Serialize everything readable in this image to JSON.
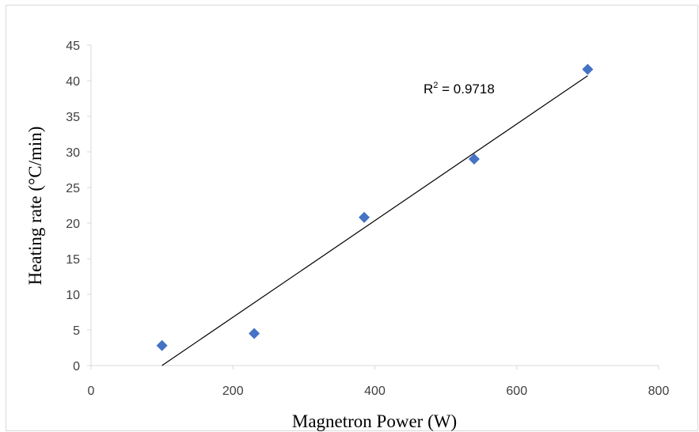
{
  "chart_data": {
    "type": "scatter",
    "title": "",
    "xlabel": "Magnetron Power (W)",
    "ylabel": "Heating rate (°C/min)",
    "xlim": [
      0,
      800
    ],
    "ylim": [
      0,
      45
    ],
    "xticks": [
      0,
      200,
      400,
      600,
      800
    ],
    "yticks": [
      0,
      5,
      10,
      15,
      20,
      25,
      30,
      35,
      40,
      45
    ],
    "grid": false,
    "legend": "none",
    "series": [
      {
        "marker": "diamond",
        "color": "#4472c4",
        "points": [
          {
            "x": 100,
            "y": 2.8
          },
          {
            "x": 230,
            "y": 4.5
          },
          {
            "x": 385,
            "y": 20.8
          },
          {
            "x": 540,
            "y": 29.0
          },
          {
            "x": 700,
            "y": 41.6
          }
        ]
      }
    ],
    "trendline": {
      "type": "linear",
      "color": "#000000",
      "x_start": 100,
      "y_start": 0,
      "x_end": 700,
      "y_end": 40.7
    },
    "annotations": [
      {
        "text_base": "R",
        "text_sup": "2",
        "text_rest": " = 0.9718"
      }
    ]
  }
}
